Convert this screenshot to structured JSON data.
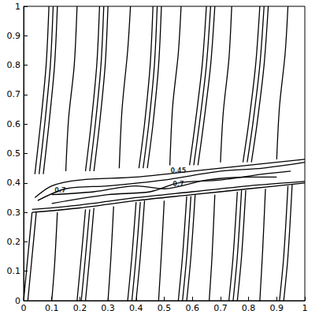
{
  "chart_data": {
    "type": "contour",
    "color": "#000000",
    "xlim": [
      0,
      1
    ],
    "ylim": [
      0,
      1
    ],
    "xticks": [
      0,
      0.1,
      0.2,
      0.3,
      0.4,
      0.5,
      0.6,
      0.7,
      0.8,
      0.9,
      1
    ],
    "yticks": [
      0,
      0.1,
      0.2,
      0.3,
      0.4,
      0.5,
      0.6,
      0.7,
      0.8,
      0.9,
      1
    ],
    "grid": false,
    "lines": [
      [
        [
          0.04,
          0.43
        ],
        [
          0.06,
          0.6
        ],
        [
          0.08,
          0.8
        ],
        [
          0.09,
          1
        ]
      ],
      [
        [
          0.055,
          0.43
        ],
        [
          0.075,
          0.6
        ],
        [
          0.095,
          0.8
        ],
        [
          0.105,
          1
        ]
      ],
      [
        [
          0.07,
          0.43
        ],
        [
          0.09,
          0.6
        ],
        [
          0.11,
          0.8
        ],
        [
          0.12,
          1
        ]
      ],
      [
        [
          0.22,
          0.44
        ],
        [
          0.24,
          0.6
        ],
        [
          0.26,
          0.8
        ],
        [
          0.27,
          1
        ]
      ],
      [
        [
          0.235,
          0.44
        ],
        [
          0.255,
          0.6
        ],
        [
          0.275,
          0.8
        ],
        [
          0.285,
          1
        ]
      ],
      [
        [
          0.25,
          0.44
        ],
        [
          0.27,
          0.6
        ],
        [
          0.29,
          0.8
        ],
        [
          0.3,
          1
        ]
      ],
      [
        [
          0.41,
          0.45
        ],
        [
          0.43,
          0.6
        ],
        [
          0.45,
          0.8
        ],
        [
          0.46,
          1
        ]
      ],
      [
        [
          0.425,
          0.45
        ],
        [
          0.445,
          0.6
        ],
        [
          0.465,
          0.8
        ],
        [
          0.475,
          1
        ]
      ],
      [
        [
          0.44,
          0.45
        ],
        [
          0.46,
          0.6
        ],
        [
          0.48,
          0.8
        ],
        [
          0.49,
          1
        ]
      ],
      [
        [
          0.59,
          0.46
        ],
        [
          0.61,
          0.6
        ],
        [
          0.635,
          0.8
        ],
        [
          0.65,
          1
        ]
      ],
      [
        [
          0.605,
          0.46
        ],
        [
          0.625,
          0.6
        ],
        [
          0.65,
          0.8
        ],
        [
          0.665,
          1
        ]
      ],
      [
        [
          0.62,
          0.46
        ],
        [
          0.64,
          0.6
        ],
        [
          0.665,
          0.8
        ],
        [
          0.68,
          1
        ]
      ],
      [
        [
          0.78,
          0.47
        ],
        [
          0.8,
          0.6
        ],
        [
          0.825,
          0.8
        ],
        [
          0.84,
          1
        ]
      ],
      [
        [
          0.795,
          0.47
        ],
        [
          0.815,
          0.6
        ],
        [
          0.84,
          0.8
        ],
        [
          0.855,
          1
        ]
      ],
      [
        [
          0.81,
          0.47
        ],
        [
          0.83,
          0.6
        ],
        [
          0.855,
          0.8
        ],
        [
          0.87,
          1
        ]
      ],
      [
        [
          0.15,
          0.44
        ],
        [
          0.16,
          0.62
        ],
        [
          0.18,
          0.8
        ],
        [
          0.19,
          1
        ]
      ],
      [
        [
          0.34,
          0.45
        ],
        [
          0.35,
          0.65
        ],
        [
          0.37,
          0.85
        ],
        [
          0.38,
          1
        ]
      ],
      [
        [
          0.52,
          0.46
        ],
        [
          0.53,
          0.66
        ],
        [
          0.55,
          0.84
        ],
        [
          0.56,
          1
        ]
      ],
      [
        [
          0.7,
          0.47
        ],
        [
          0.71,
          0.64
        ],
        [
          0.73,
          0.82
        ],
        [
          0.74,
          1
        ]
      ],
      [
        [
          0.9,
          0.48
        ],
        [
          0.91,
          0.66
        ],
        [
          0.93,
          0.84
        ],
        [
          0.94,
          1
        ]
      ],
      [
        [
          0.0,
          0.0
        ],
        [
          0.015,
          0.15
        ],
        [
          0.03,
          0.3
        ]
      ],
      [
        [
          0.015,
          0.0
        ],
        [
          0.03,
          0.15
        ],
        [
          0.045,
          0.3
        ]
      ],
      [
        [
          0.19,
          0.0
        ],
        [
          0.205,
          0.15
        ],
        [
          0.22,
          0.31
        ]
      ],
      [
        [
          0.205,
          0.0
        ],
        [
          0.22,
          0.15
        ],
        [
          0.235,
          0.31
        ]
      ],
      [
        [
          0.22,
          0.0
        ],
        [
          0.235,
          0.15
        ],
        [
          0.25,
          0.315
        ]
      ],
      [
        [
          0.37,
          0.0
        ],
        [
          0.385,
          0.15
        ],
        [
          0.4,
          0.335
        ]
      ],
      [
        [
          0.385,
          0.0
        ],
        [
          0.4,
          0.15
        ],
        [
          0.415,
          0.335
        ]
      ],
      [
        [
          0.4,
          0.0
        ],
        [
          0.415,
          0.15
        ],
        [
          0.43,
          0.34
        ]
      ],
      [
        [
          0.55,
          0.0
        ],
        [
          0.565,
          0.15
        ],
        [
          0.58,
          0.355
        ]
      ],
      [
        [
          0.565,
          0.0
        ],
        [
          0.58,
          0.15
        ],
        [
          0.595,
          0.355
        ]
      ],
      [
        [
          0.58,
          0.0
        ],
        [
          0.595,
          0.15
        ],
        [
          0.61,
          0.36
        ]
      ],
      [
        [
          0.73,
          0.0
        ],
        [
          0.745,
          0.15
        ],
        [
          0.76,
          0.37
        ]
      ],
      [
        [
          0.745,
          0.0
        ],
        [
          0.76,
          0.15
        ],
        [
          0.775,
          0.375
        ]
      ],
      [
        [
          0.76,
          0.0
        ],
        [
          0.775,
          0.15
        ],
        [
          0.79,
          0.375
        ]
      ],
      [
        [
          0.91,
          0.0
        ],
        [
          0.925,
          0.15
        ],
        [
          0.94,
          0.39
        ]
      ],
      [
        [
          0.925,
          0.0
        ],
        [
          0.94,
          0.15
        ],
        [
          0.955,
          0.395
        ]
      ],
      [
        [
          0.1,
          0.0
        ],
        [
          0.11,
          0.12
        ],
        [
          0.12,
          0.3
        ]
      ],
      [
        [
          0.3,
          0.0
        ],
        [
          0.31,
          0.14
        ],
        [
          0.32,
          0.32
        ]
      ],
      [
        [
          0.48,
          0.0
        ],
        [
          0.49,
          0.16
        ],
        [
          0.5,
          0.34
        ]
      ],
      [
        [
          0.66,
          0.0
        ],
        [
          0.67,
          0.15
        ],
        [
          0.68,
          0.36
        ]
      ],
      [
        [
          0.84,
          0.0
        ],
        [
          0.85,
          0.17
        ],
        [
          0.86,
          0.38
        ]
      ],
      [
        [
          0.03,
          0.3
        ],
        [
          0.2,
          0.315
        ],
        [
          0.4,
          0.34
        ],
        [
          0.6,
          0.36
        ],
        [
          0.8,
          0.38
        ],
        [
          1,
          0.4
        ]
      ],
      [
        [
          0.03,
          0.31
        ],
        [
          0.2,
          0.325
        ],
        [
          0.4,
          0.35
        ],
        [
          0.6,
          0.37
        ],
        [
          0.8,
          0.39
        ],
        [
          1,
          0.405
        ]
      ],
      [
        [
          0.04,
          0.35
        ],
        [
          0.1,
          0.39
        ],
        [
          0.2,
          0.41
        ],
        [
          0.4,
          0.42
        ],
        [
          0.6,
          0.44
        ],
        [
          0.8,
          0.46
        ],
        [
          1,
          0.48
        ]
      ],
      [
        [
          0.05,
          0.34
        ],
        [
          0.15,
          0.38
        ],
        [
          0.3,
          0.39
        ],
        [
          0.5,
          0.41
        ],
        [
          0.7,
          0.44
        ],
        [
          0.85,
          0.45
        ],
        [
          1,
          0.47
        ]
      ],
      [
        [
          0.1,
          0.33
        ],
        [
          0.3,
          0.36
        ],
        [
          0.45,
          0.37
        ],
        [
          0.55,
          0.4
        ],
        [
          0.7,
          0.41
        ],
        [
          0.85,
          0.43
        ],
        [
          0.95,
          0.44
        ]
      ],
      [
        [
          0.1,
          0.36
        ],
        [
          0.25,
          0.37
        ],
        [
          0.4,
          0.39
        ],
        [
          0.5,
          0.38
        ],
        [
          0.65,
          0.41
        ],
        [
          0.8,
          0.42
        ],
        [
          0.9,
          0.42
        ]
      ]
    ],
    "annotations": [
      {
        "text": "0.7",
        "x": 0.13,
        "y": 0.375
      },
      {
        "text": "0.45",
        "x": 0.55,
        "y": 0.44
      },
      {
        "text": "0.7",
        "x": 0.55,
        "y": 0.395
      }
    ]
  }
}
